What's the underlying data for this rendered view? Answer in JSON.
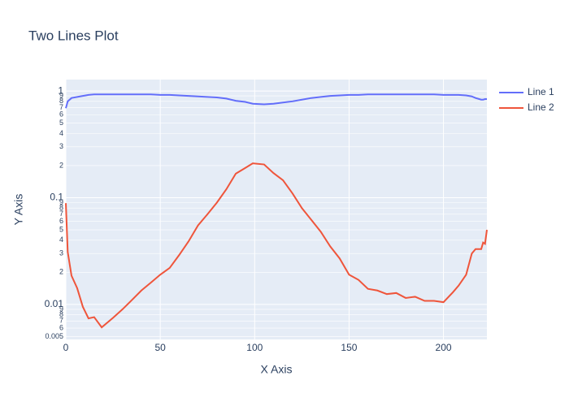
{
  "chart_data": {
    "type": "line",
    "title": "Two Lines Plot",
    "x_label": "X Axis",
    "y_label": "Y Axis",
    "x": [
      0,
      1,
      3,
      6,
      9,
      12,
      15,
      19,
      25,
      30,
      35,
      40,
      45,
      50,
      55,
      60,
      65,
      70,
      75,
      80,
      85,
      90,
      95,
      99,
      105,
      110,
      115,
      120,
      125,
      130,
      135,
      140,
      145,
      150,
      155,
      160,
      165,
      170,
      175,
      180,
      185,
      190,
      195,
      200,
      205,
      208,
      212,
      215,
      217,
      220,
      221,
      222,
      223
    ],
    "series": [
      {
        "name": "Line 1",
        "color": "#636efa",
        "values": [
          0.69,
          0.8,
          0.86,
          0.88,
          0.9,
          0.92,
          0.93,
          0.93,
          0.93,
          0.93,
          0.93,
          0.93,
          0.93,
          0.92,
          0.92,
          0.91,
          0.9,
          0.89,
          0.88,
          0.87,
          0.85,
          0.81,
          0.79,
          0.76,
          0.75,
          0.76,
          0.78,
          0.8,
          0.83,
          0.86,
          0.88,
          0.9,
          0.91,
          0.92,
          0.92,
          0.93,
          0.93,
          0.93,
          0.93,
          0.93,
          0.93,
          0.93,
          0.93,
          0.92,
          0.92,
          0.92,
          0.91,
          0.89,
          0.86,
          0.83,
          0.83,
          0.84,
          0.84
        ]
      },
      {
        "name": "Line 2",
        "color": "#ef553b",
        "values": [
          0.089,
          0.031,
          0.0186,
          0.0142,
          0.0095,
          0.0074,
          0.0076,
          0.0061,
          0.0075,
          0.009,
          0.011,
          0.0135,
          0.016,
          0.019,
          0.022,
          0.029,
          0.039,
          0.055,
          0.07,
          0.09,
          0.12,
          0.168,
          0.19,
          0.21,
          0.205,
          0.17,
          0.146,
          0.11,
          0.08,
          0.062,
          0.048,
          0.035,
          0.027,
          0.019,
          0.017,
          0.014,
          0.0135,
          0.0125,
          0.0128,
          0.0115,
          0.0118,
          0.0108,
          0.0108,
          0.0105,
          0.013,
          0.015,
          0.019,
          0.03,
          0.033,
          0.033,
          0.038,
          0.037,
          0.05
        ]
      }
    ],
    "xlim": [
      0,
      223
    ],
    "xticks": [
      0,
      50,
      100,
      150,
      200
    ],
    "ylim": [
      0.0047,
      1.28
    ],
    "log_y": true,
    "yticks": [
      0.005,
      {
        "value": 0.006,
        "label": "6"
      },
      {
        "value": 0.007,
        "label": "7"
      },
      {
        "value": 0.008,
        "label": "8"
      },
      {
        "value": 0.009,
        "label": "9"
      },
      0.01,
      {
        "value": 0.02,
        "label": "2"
      },
      {
        "value": 0.03,
        "label": "3"
      },
      {
        "value": 0.04,
        "label": "4"
      },
      {
        "value": 0.05,
        "label": "5"
      },
      {
        "value": 0.06,
        "label": "6"
      },
      {
        "value": 0.07,
        "label": "7"
      },
      {
        "value": 0.08,
        "label": "8"
      },
      {
        "value": 0.09,
        "label": "9"
      },
      0.1,
      {
        "value": 0.2,
        "label": "2"
      },
      {
        "value": 0.3,
        "label": "3"
      },
      {
        "value": 0.4,
        "label": "4"
      },
      {
        "value": 0.5,
        "label": "5"
      },
      {
        "value": 0.6,
        "label": "6"
      },
      {
        "value": 0.7,
        "label": "7"
      },
      {
        "value": 0.8,
        "label": "8"
      },
      {
        "value": 0.9,
        "label": "9"
      },
      1
    ],
    "grid": true,
    "legend": "right"
  }
}
